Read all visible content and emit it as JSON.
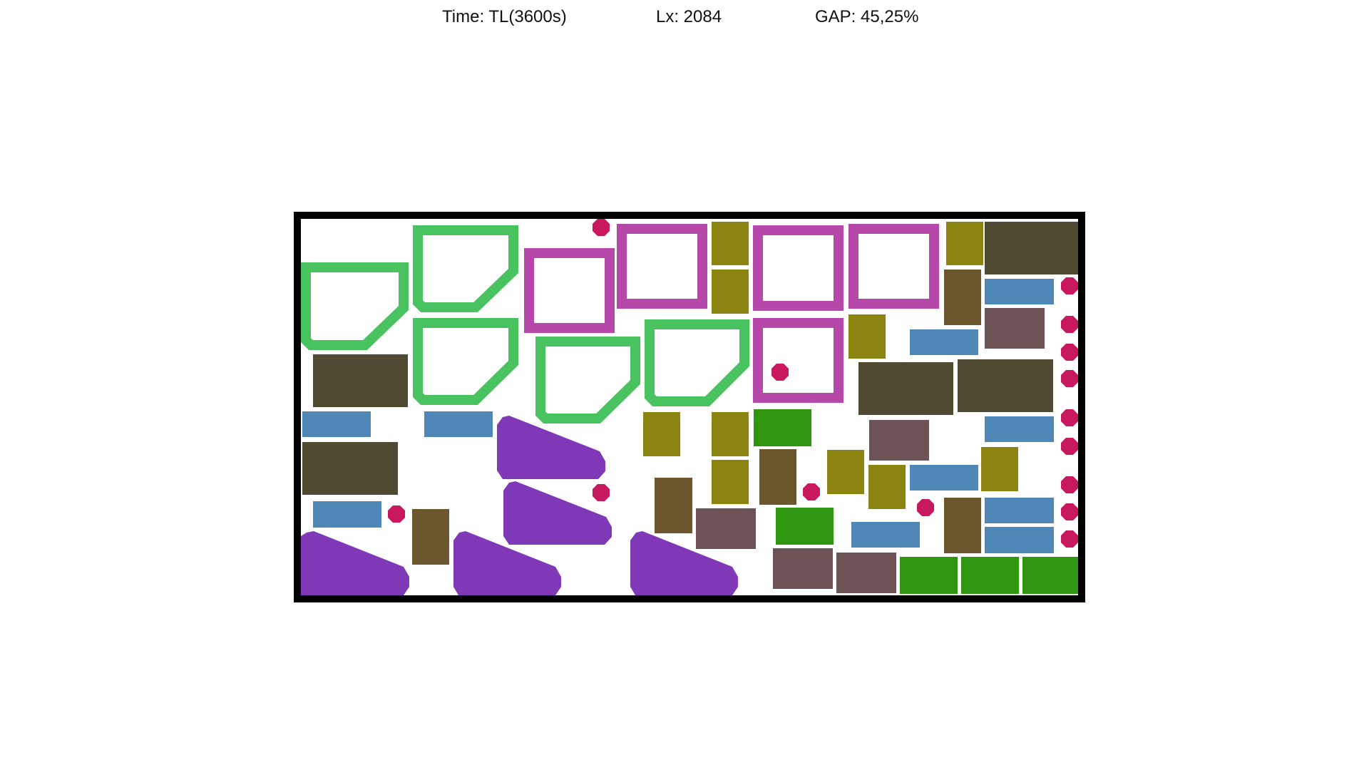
{
  "header": {
    "time": "Time: TL(3600s)",
    "lx": "Lx: 2084",
    "gap": "GAP: 45,25%"
  },
  "colors": {
    "border": "#000000",
    "green_outline": "#49c35f",
    "magenta_outline": "#b548a8",
    "crimson_octagon": "#c8185e",
    "olive": "#8c8410",
    "dark_olive": "#514a33",
    "steel_blue": "#4f88b6",
    "brown": "#6b562d",
    "taupe": "#6d5256",
    "bright_green": "#2f970f",
    "purple": "#7f39b6"
  }
}
